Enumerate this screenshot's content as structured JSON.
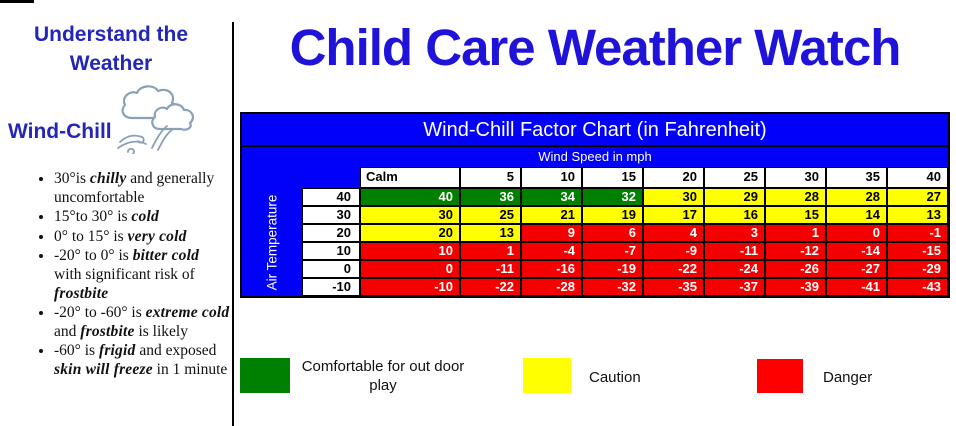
{
  "sidebar": {
    "heading": "Understand the Weather",
    "subheading": "Wind-Chill",
    "icon": "clouds-wind-icon",
    "bullets": [
      [
        {
          "t": "30°is "
        },
        {
          "t": "chilly",
          "em": true
        },
        {
          "t": " and generally uncomfortable"
        }
      ],
      [
        {
          "t": "15°to 30° is "
        },
        {
          "t": "cold",
          "em": true
        }
      ],
      [
        {
          "t": "0° to 15° is "
        },
        {
          "t": "very cold",
          "em": true
        }
      ],
      [
        {
          "t": "-20° to 0° is "
        },
        {
          "t": "bitter cold",
          "em": true
        },
        {
          "t": " with significant risk of "
        },
        {
          "t": "frostbite",
          "em": true
        }
      ],
      [
        {
          "t": "-20° to -60° is "
        },
        {
          "t": "extreme cold",
          "em": true
        },
        {
          "t": " and "
        },
        {
          "t": "frostbite",
          "em": true
        },
        {
          "t": " is likely"
        }
      ],
      [
        {
          "t": "-60° is "
        },
        {
          "t": "frigid",
          "em": true
        },
        {
          "t": " and exposed "
        },
        {
          "t": "skin will freeze",
          "em": true
        },
        {
          "t": " in 1 minute"
        }
      ]
    ]
  },
  "page_title": "Child Care Weather Watch",
  "chart_data": {
    "type": "table",
    "title": "Wind-Chill Factor Chart (in Fahrenheit)",
    "x_axis_label": "Wind Speed in mph",
    "y_axis_label": "Air Temperature",
    "columns": [
      "Calm",
      "5",
      "10",
      "15",
      "20",
      "25",
      "30",
      "35",
      "40"
    ],
    "rows": [
      {
        "temp": "40",
        "values": [
          40,
          36,
          34,
          32,
          30,
          29,
          28,
          28,
          27
        ],
        "zones": [
          "g",
          "g",
          "g",
          "g",
          "y",
          "y",
          "y",
          "y",
          "y"
        ]
      },
      {
        "temp": "30",
        "values": [
          30,
          25,
          21,
          19,
          17,
          16,
          15,
          14,
          13
        ],
        "zones": [
          "y",
          "y",
          "y",
          "y",
          "y",
          "y",
          "y",
          "y",
          "y"
        ]
      },
      {
        "temp": "20",
        "values": [
          20,
          13,
          9,
          6,
          4,
          3,
          1,
          0,
          -1
        ],
        "zones": [
          "y",
          "y",
          "r",
          "r",
          "r",
          "r",
          "r",
          "r",
          "r"
        ]
      },
      {
        "temp": "10",
        "values": [
          10,
          1,
          -4,
          -7,
          -9,
          -11,
          -12,
          -14,
          -15
        ],
        "zones": [
          "r",
          "r",
          "r",
          "r",
          "r",
          "r",
          "r",
          "r",
          "r"
        ]
      },
      {
        "temp": "0",
        "values": [
          0,
          -11,
          -16,
          -19,
          -22,
          -24,
          -26,
          -27,
          -29
        ],
        "zones": [
          "r",
          "r",
          "r",
          "r",
          "r",
          "r",
          "r",
          "r",
          "r"
        ]
      },
      {
        "temp": "-10",
        "values": [
          -10,
          -22,
          -28,
          -32,
          -35,
          -37,
          -39,
          -41,
          -43
        ],
        "zones": [
          "r",
          "r",
          "r",
          "r",
          "r",
          "r",
          "r",
          "r",
          "r"
        ]
      }
    ],
    "zone_colors": {
      "g": "#008000",
      "y": "#ffff00",
      "r": "#f40000"
    },
    "zone_text_colors": {
      "g": "#ffffff",
      "y": "#000000",
      "r": "#ffffff"
    }
  },
  "legend": [
    {
      "label": "Comfortable for out door play",
      "color": "#008000"
    },
    {
      "label": "Caution",
      "color": "#ffff00"
    },
    {
      "label": "Danger",
      "color": "#ff0000"
    }
  ],
  "colors": {
    "header_blue": "#0101fa",
    "title_blue": "#2013d9"
  }
}
